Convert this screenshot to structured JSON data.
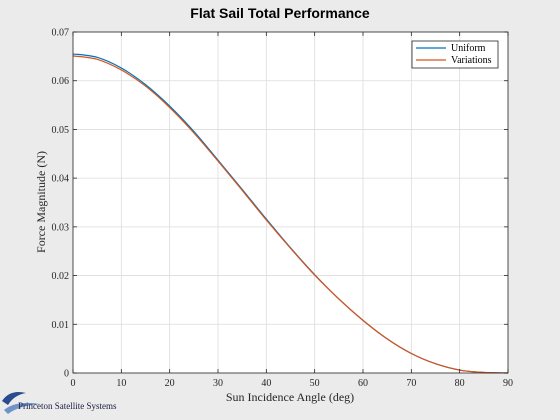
{
  "chart_data": {
    "type": "line",
    "title": "Flat Sail Total Performance",
    "xlabel": "Sun Incidence Angle (deg)",
    "ylabel": "Force Magnitude (N)",
    "xlim": [
      0,
      90
    ],
    "ylim": [
      0,
      0.07
    ],
    "xticks": [
      0,
      10,
      20,
      30,
      40,
      50,
      60,
      70,
      80,
      90
    ],
    "yticks": [
      0,
      0.01,
      0.02,
      0.03,
      0.04,
      0.05,
      0.06,
      0.07
    ],
    "xtick_labels": [
      "0",
      "10",
      "20",
      "30",
      "40",
      "50",
      "60",
      "70",
      "80",
      "90"
    ],
    "ytick_labels": [
      "0",
      "0.01",
      "0.02",
      "0.03",
      "0.04",
      "0.05",
      "0.06",
      "0.07"
    ],
    "grid": true,
    "legend_position": "top-right",
    "x": [
      0,
      5,
      10,
      15,
      20,
      25,
      30,
      35,
      40,
      45,
      50,
      55,
      60,
      65,
      70,
      75,
      80,
      85,
      90
    ],
    "series": [
      {
        "name": "Uniform",
        "color": "#0072bd",
        "values": [
          0.0655,
          0.0648,
          0.0626,
          0.0592,
          0.0548,
          0.0496,
          0.0437,
          0.0377,
          0.0316,
          0.0257,
          0.0202,
          0.0152,
          0.0108,
          0.007,
          0.004,
          0.0019,
          0.0006,
          0.0001,
          0
        ]
      },
      {
        "name": "Variations",
        "color": "#d95319",
        "values": [
          0.0651,
          0.0644,
          0.0622,
          0.0589,
          0.0545,
          0.0493,
          0.0435,
          0.0375,
          0.0314,
          0.0256,
          0.0201,
          0.0152,
          0.0108,
          0.007,
          0.004,
          0.0019,
          0.0006,
          0.0001,
          0
        ]
      }
    ]
  },
  "footer": {
    "logo_text": "Princeton Satellite Systems"
  }
}
